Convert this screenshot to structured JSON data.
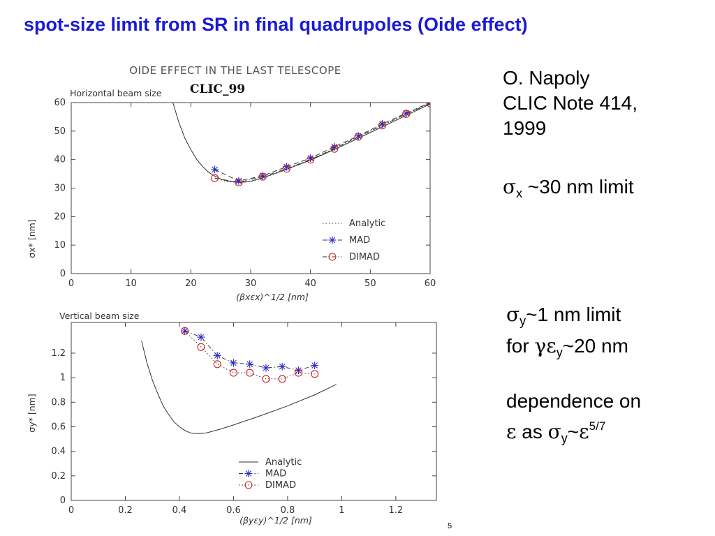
{
  "slide": {
    "title": "spot-size limit from SR in final quadrupoles (Oide effect)",
    "reference": [
      "O. Napoly",
      "CLIC Note 414,",
      "1999"
    ],
    "note_x": {
      "sigma": "σ",
      "sub": "x",
      "text": " ~30 nm limit"
    },
    "note_y_line1": {
      "sigma": "σ",
      "sub": "y",
      "text": "~1 nm limit"
    },
    "note_y_line2": {
      "pre": "for ",
      "gamma_eps": "γε",
      "sub": "y",
      "text": "~20 nm"
    },
    "note_dep_line1": "dependence on",
    "note_dep_line2": {
      "eps": "ε",
      "mid": " as ",
      "sigma": "σ",
      "sub": "y",
      "tilde": "~",
      "eps2": "ε",
      "sup": "5/7"
    },
    "slide_number": "5"
  },
  "chart_data": [
    {
      "type": "line",
      "title": "OIDE EFFECT IN THE LAST TELESCOPE",
      "subtitle": "CLIC_99",
      "panel_label": "Horizontal beam size",
      "xlabel": "(βxεx)^1/2 [nm]",
      "ylabel": "σx* [nm]",
      "xlim": [
        0,
        60
      ],
      "ylim": [
        0,
        60
      ],
      "xticks": [
        "0",
        "10",
        "20",
        "30",
        "40",
        "50",
        "60"
      ],
      "yticks": [
        "0",
        "10",
        "20",
        "30",
        "40",
        "50",
        "60"
      ],
      "legend_position": "bottom-right",
      "legend": [
        "Analytic",
        "MAD",
        "DIMAD"
      ],
      "series": [
        {
          "name": "Analytic",
          "style": "dotted",
          "x": [
            24,
            26,
            28,
            30,
            32,
            36,
            40,
            44,
            48,
            52,
            56,
            60
          ],
          "y": [
            33.5,
            32.3,
            32.0,
            32.3,
            33.5,
            36.5,
            40,
            44,
            48,
            52,
            56,
            60
          ]
        },
        {
          "name": "MAD",
          "style": "dashed-star",
          "x": [
            24,
            28,
            32,
            36,
            40,
            44,
            48,
            52,
            56,
            60
          ],
          "y": [
            36.5,
            32.5,
            34.3,
            37.5,
            40.5,
            44.5,
            48.3,
            52.5,
            56.3,
            60
          ]
        },
        {
          "name": "DIMAD",
          "style": "dashdot-circle",
          "x": [
            24,
            28,
            32,
            36,
            40,
            44,
            48,
            52,
            56,
            60
          ],
          "y": [
            33.5,
            32.0,
            34.0,
            36.8,
            40.0,
            43.8,
            48.0,
            52.0,
            56.0,
            59.7
          ]
        }
      ],
      "extra_curve": {
        "name": "Analytic (solid)",
        "x": [
          17,
          18,
          19,
          20,
          21,
          22,
          23,
          24,
          25,
          26,
          27,
          28,
          29,
          30,
          32,
          35,
          40,
          45,
          50,
          55,
          60
        ],
        "y": [
          60,
          53,
          47.5,
          43.5,
          40,
          37.5,
          35.5,
          34.2,
          33.2,
          32.6,
          32.2,
          32.0,
          32.1,
          32.4,
          33.6,
          35.8,
          39.8,
          44.5,
          49.5,
          54.5,
          59.5
        ]
      }
    },
    {
      "type": "line",
      "panel_label": "Vertical beam size",
      "xlabel": "(βyεy)^1/2 [nm]",
      "ylabel": "σy* [nm]",
      "xlim": [
        0,
        1.35
      ],
      "ylim": [
        0,
        1.45
      ],
      "xticks": [
        "0",
        "0.2",
        "0.4",
        "0.6",
        "0.8",
        "1",
        "1.2"
      ],
      "yticks": [
        "0",
        "0.2",
        "0.4",
        "0.6",
        "0.8",
        "1",
        "1.2"
      ],
      "legend_position": "bottom-center",
      "legend": [
        "Analytic",
        "MAD",
        "DIMAD"
      ],
      "series": [
        {
          "name": "Analytic",
          "style": "solid",
          "x": [
            0.26,
            0.28,
            0.3,
            0.32,
            0.34,
            0.36,
            0.38,
            0.4,
            0.42,
            0.44,
            0.46,
            0.48,
            0.5,
            0.55,
            0.6,
            0.7,
            0.8,
            0.9,
            0.98
          ],
          "y": [
            1.3,
            1.12,
            0.98,
            0.87,
            0.77,
            0.7,
            0.64,
            0.6,
            0.57,
            0.55,
            0.545,
            0.545,
            0.55,
            0.58,
            0.615,
            0.69,
            0.77,
            0.86,
            0.945
          ]
        },
        {
          "name": "MAD",
          "style": "dashdot-star",
          "x": [
            0.42,
            0.48,
            0.54,
            0.6,
            0.66,
            0.72,
            0.78,
            0.84,
            0.9
          ],
          "y": [
            1.38,
            1.33,
            1.18,
            1.12,
            1.11,
            1.08,
            1.09,
            1.06,
            1.1
          ]
        },
        {
          "name": "DIMAD",
          "style": "dotted-circle",
          "x": [
            0.42,
            0.48,
            0.54,
            0.6,
            0.66,
            0.72,
            0.78,
            0.84,
            0.9
          ],
          "y": [
            1.38,
            1.25,
            1.11,
            1.04,
            1.04,
            0.99,
            0.99,
            1.04,
            1.03
          ]
        }
      ]
    }
  ]
}
